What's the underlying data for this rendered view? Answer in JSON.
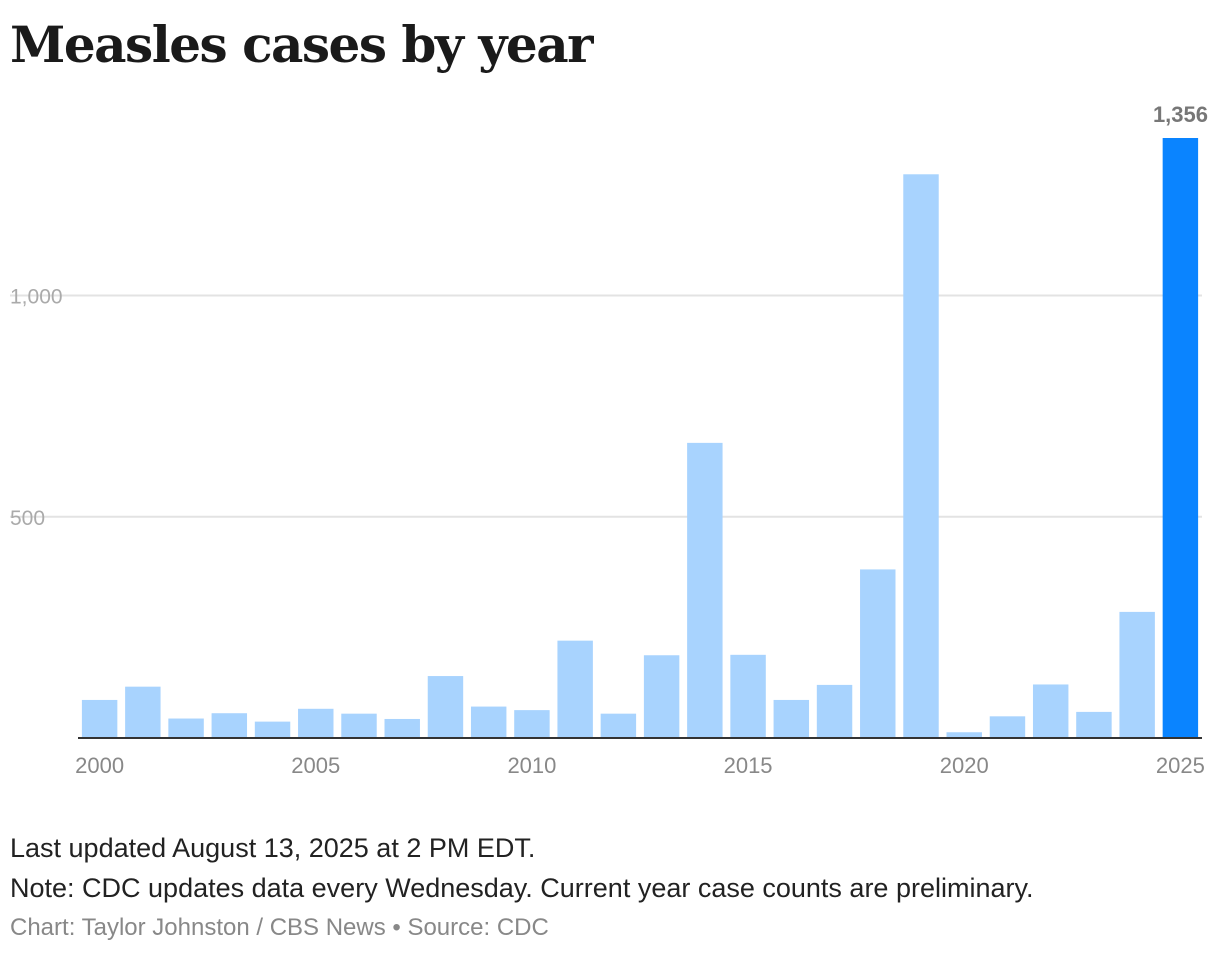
{
  "title": "Measles cases by year",
  "chart_data": {
    "type": "bar",
    "title": "Measles cases by year",
    "categories": [
      "2000",
      "2001",
      "2002",
      "2003",
      "2004",
      "2005",
      "2006",
      "2007",
      "2008",
      "2009",
      "2010",
      "2011",
      "2012",
      "2013",
      "2014",
      "2015",
      "2016",
      "2017",
      "2018",
      "2019",
      "2020",
      "2021",
      "2022",
      "2023",
      "2024",
      "2025"
    ],
    "values": [
      86,
      116,
      44,
      56,
      37,
      66,
      55,
      43,
      140,
      71,
      63,
      220,
      55,
      187,
      667,
      188,
      86,
      120,
      381,
      1274,
      13,
      49,
      121,
      59,
      285,
      1356
    ],
    "x_tick_labels": [
      "2000",
      "2005",
      "2010",
      "2015",
      "2020",
      "2025"
    ],
    "y_ticks": [
      500,
      1000
    ],
    "y_tick_labels": [
      "500",
      "1,000"
    ],
    "ylim": [
      0,
      1356
    ],
    "xlabel": "",
    "ylabel": "",
    "grid": true,
    "highlight": {
      "category": "2025",
      "label": "1,356"
    },
    "colors": {
      "bar": "#a8d3fe",
      "highlight": "#0a84ff",
      "grid": "#e3e3e3",
      "axis": "#333333",
      "tick_text": "#aaaaaa",
      "x_tick_text": "#888888",
      "highlight_label": "#777777"
    }
  },
  "footer": {
    "updated": "Last updated August 13, 2025 at 2 PM EDT.",
    "note": "Note: CDC updates data every Wednesday. Current year case counts are preliminary.",
    "credit": "Chart: Taylor Johnston / CBS News • Source: CDC"
  }
}
